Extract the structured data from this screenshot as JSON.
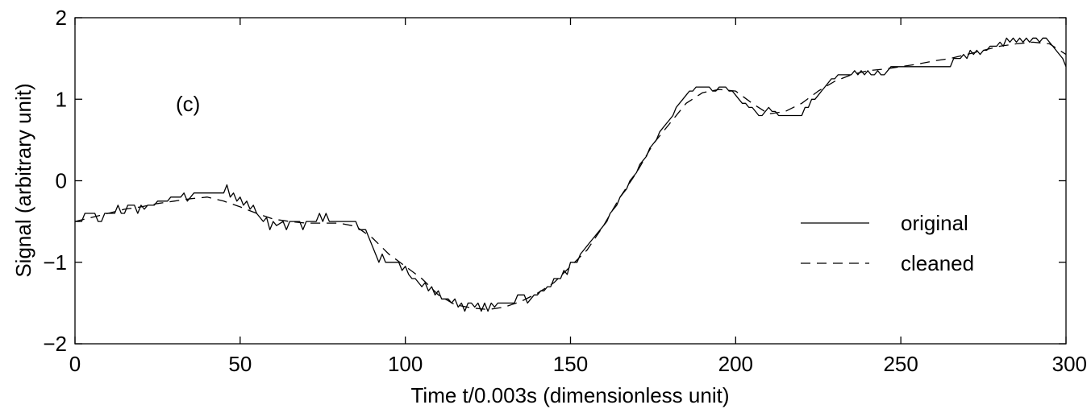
{
  "chart_data": {
    "type": "line",
    "panel_label": "(c)",
    "xlabel": "Time t/0.003s (dimensionless unit)",
    "ylabel": "Signal (arbitrary unit)",
    "xlim": [
      0,
      300
    ],
    "ylim": [
      -2,
      2
    ],
    "xticks": [
      0,
      50,
      100,
      150,
      200,
      250,
      300
    ],
    "yticks": [
      -2,
      -1,
      0,
      1,
      2
    ],
    "xtick_labels": [
      "0",
      "50",
      "100",
      "150",
      "200",
      "250",
      "300"
    ],
    "ytick_labels": [
      "−2",
      "−1",
      "0",
      "1",
      "2"
    ],
    "grid": false,
    "legend_position": "right",
    "series": [
      {
        "name": "original",
        "style": "solid",
        "color": "#000000",
        "points": [
          [
            0,
            -0.5
          ],
          [
            2,
            -0.5
          ],
          [
            3,
            -0.4
          ],
          [
            6,
            -0.4
          ],
          [
            7,
            -0.5
          ],
          [
            8,
            -0.5
          ],
          [
            9,
            -0.4
          ],
          [
            12,
            -0.4
          ],
          [
            13,
            -0.3
          ],
          [
            14,
            -0.4
          ],
          [
            15,
            -0.4
          ],
          [
            16,
            -0.3
          ],
          [
            18,
            -0.3
          ],
          [
            19,
            -0.4
          ],
          [
            20,
            -0.3
          ],
          [
            21,
            -0.35
          ],
          [
            22,
            -0.3
          ],
          [
            24,
            -0.3
          ],
          [
            25,
            -0.25
          ],
          [
            28,
            -0.25
          ],
          [
            29,
            -0.2
          ],
          [
            32,
            -0.2
          ],
          [
            33,
            -0.15
          ],
          [
            34,
            -0.25
          ],
          [
            35,
            -0.2
          ],
          [
            36,
            -0.15
          ],
          [
            40,
            -0.15
          ],
          [
            45,
            -0.15
          ],
          [
            46,
            -0.05
          ],
          [
            47,
            -0.2
          ],
          [
            48,
            -0.15
          ],
          [
            49,
            -0.25
          ],
          [
            50,
            -0.2
          ],
          [
            51,
            -0.3
          ],
          [
            52,
            -0.25
          ],
          [
            53,
            -0.35
          ],
          [
            54,
            -0.3
          ],
          [
            55,
            -0.4
          ],
          [
            57,
            -0.5
          ],
          [
            58,
            -0.45
          ],
          [
            59,
            -0.6
          ],
          [
            60,
            -0.5
          ],
          [
            61,
            -0.55
          ],
          [
            63,
            -0.5
          ],
          [
            64,
            -0.6
          ],
          [
            65,
            -0.5
          ],
          [
            68,
            -0.5
          ],
          [
            69,
            -0.6
          ],
          [
            70,
            -0.5
          ],
          [
            73,
            -0.5
          ],
          [
            74,
            -0.4
          ],
          [
            75,
            -0.5
          ],
          [
            76,
            -0.4
          ],
          [
            77,
            -0.5
          ],
          [
            85,
            -0.5
          ],
          [
            86,
            -0.6
          ],
          [
            88,
            -0.6
          ],
          [
            89,
            -0.7
          ],
          [
            90,
            -0.8
          ],
          [
            91,
            -0.9
          ],
          [
            92,
            -1.0
          ],
          [
            93,
            -0.9
          ],
          [
            94,
            -1.0
          ],
          [
            98,
            -1.0
          ],
          [
            99,
            -1.1
          ],
          [
            100,
            -1.05
          ],
          [
            101,
            -1.15
          ],
          [
            102,
            -1.2
          ],
          [
            103,
            -1.2
          ],
          [
            104,
            -1.25
          ],
          [
            105,
            -1.3
          ],
          [
            106,
            -1.25
          ],
          [
            107,
            -1.35
          ],
          [
            108,
            -1.3
          ],
          [
            109,
            -1.4
          ],
          [
            110,
            -1.35
          ],
          [
            111,
            -1.45
          ],
          [
            113,
            -1.45
          ],
          [
            114,
            -1.5
          ],
          [
            115,
            -1.45
          ],
          [
            116,
            -1.55
          ],
          [
            117,
            -1.5
          ],
          [
            118,
            -1.6
          ],
          [
            119,
            -1.5
          ],
          [
            120,
            -1.5
          ],
          [
            121,
            -1.55
          ],
          [
            122,
            -1.5
          ],
          [
            123,
            -1.6
          ],
          [
            124,
            -1.5
          ],
          [
            125,
            -1.6
          ],
          [
            126,
            -1.5
          ],
          [
            127,
            -1.55
          ],
          [
            128,
            -1.5
          ],
          [
            133,
            -1.5
          ],
          [
            134,
            -1.4
          ],
          [
            136,
            -1.4
          ],
          [
            137,
            -1.5
          ],
          [
            138,
            -1.45
          ],
          [
            139,
            -1.4
          ],
          [
            140,
            -1.4
          ],
          [
            141,
            -1.35
          ],
          [
            142,
            -1.35
          ],
          [
            143,
            -1.3
          ],
          [
            144,
            -1.3
          ],
          [
            145,
            -1.2
          ],
          [
            147,
            -1.2
          ],
          [
            148,
            -1.1
          ],
          [
            149,
            -1.15
          ],
          [
            150,
            -1.0
          ],
          [
            152,
            -1.0
          ],
          [
            153,
            -0.9
          ],
          [
            154,
            -0.85
          ],
          [
            155,
            -0.8
          ],
          [
            156,
            -0.75
          ],
          [
            157,
            -0.7
          ],
          [
            158,
            -0.65
          ],
          [
            159,
            -0.6
          ],
          [
            160,
            -0.55
          ],
          [
            161,
            -0.5
          ],
          [
            162,
            -0.4
          ],
          [
            163,
            -0.35
          ],
          [
            164,
            -0.3
          ],
          [
            165,
            -0.2
          ],
          [
            166,
            -0.15
          ],
          [
            167,
            -0.1
          ],
          [
            168,
            0.0
          ],
          [
            169,
            0.05
          ],
          [
            170,
            0.1
          ],
          [
            171,
            0.2
          ],
          [
            172,
            0.25
          ],
          [
            173,
            0.3
          ],
          [
            174,
            0.4
          ],
          [
            175,
            0.45
          ],
          [
            176,
            0.5
          ],
          [
            177,
            0.6
          ],
          [
            178,
            0.65
          ],
          [
            179,
            0.7
          ],
          [
            180,
            0.75
          ],
          [
            181,
            0.8
          ],
          [
            182,
            0.9
          ],
          [
            183,
            0.95
          ],
          [
            184,
            1.0
          ],
          [
            185,
            1.05
          ],
          [
            186,
            1.1
          ],
          [
            187,
            1.1
          ],
          [
            188,
            1.15
          ],
          [
            192,
            1.15
          ],
          [
            193,
            1.1
          ],
          [
            194,
            1.1
          ],
          [
            195,
            1.15
          ],
          [
            197,
            1.15
          ],
          [
            198,
            1.1
          ],
          [
            199,
            1.1
          ],
          [
            200,
            1.05
          ],
          [
            201,
            1.0
          ],
          [
            202,
            0.95
          ],
          [
            203,
            0.95
          ],
          [
            204,
            0.9
          ],
          [
            205,
            0.9
          ],
          [
            206,
            0.85
          ],
          [
            207,
            0.8
          ],
          [
            208,
            0.8
          ],
          [
            209,
            0.85
          ],
          [
            210,
            0.9
          ],
          [
            211,
            0.85
          ],
          [
            212,
            0.85
          ],
          [
            213,
            0.8
          ],
          [
            220,
            0.8
          ],
          [
            221,
            0.9
          ],
          [
            222,
            0.9
          ],
          [
            223,
            1.0
          ],
          [
            224,
            1.0
          ],
          [
            225,
            1.05
          ],
          [
            226,
            1.1
          ],
          [
            227,
            1.15
          ],
          [
            228,
            1.2
          ],
          [
            229,
            1.25
          ],
          [
            230,
            1.25
          ],
          [
            231,
            1.3
          ],
          [
            235,
            1.3
          ],
          [
            236,
            1.35
          ],
          [
            237,
            1.3
          ],
          [
            238,
            1.35
          ],
          [
            239,
            1.3
          ],
          [
            240,
            1.35
          ],
          [
            241,
            1.3
          ],
          [
            242,
            1.3
          ],
          [
            243,
            1.35
          ],
          [
            244,
            1.3
          ],
          [
            245,
            1.3
          ],
          [
            246,
            1.35
          ],
          [
            247,
            1.4
          ],
          [
            265,
            1.4
          ],
          [
            266,
            1.5
          ],
          [
            268,
            1.5
          ],
          [
            269,
            1.55
          ],
          [
            270,
            1.5
          ],
          [
            271,
            1.6
          ],
          [
            272,
            1.55
          ],
          [
            273,
            1.6
          ],
          [
            274,
            1.55
          ],
          [
            275,
            1.6
          ],
          [
            276,
            1.6
          ],
          [
            277,
            1.65
          ],
          [
            279,
            1.65
          ],
          [
            280,
            1.7
          ],
          [
            281,
            1.65
          ],
          [
            282,
            1.75
          ],
          [
            283,
            1.7
          ],
          [
            284,
            1.75
          ],
          [
            285,
            1.7
          ],
          [
            286,
            1.75
          ],
          [
            287,
            1.7
          ],
          [
            288,
            1.75
          ],
          [
            289,
            1.7
          ],
          [
            290,
            1.75
          ],
          [
            291,
            1.75
          ],
          [
            292,
            1.7
          ],
          [
            293,
            1.75
          ],
          [
            294,
            1.75
          ],
          [
            295,
            1.7
          ],
          [
            296,
            1.65
          ],
          [
            297,
            1.6
          ],
          [
            298,
            1.55
          ],
          [
            299,
            1.5
          ],
          [
            300,
            1.4
          ]
        ]
      },
      {
        "name": "cleaned",
        "style": "dashed",
        "color": "#000000",
        "points": [
          [
            0,
            -0.5
          ],
          [
            5,
            -0.45
          ],
          [
            10,
            -0.4
          ],
          [
            15,
            -0.35
          ],
          [
            20,
            -0.32
          ],
          [
            25,
            -0.28
          ],
          [
            30,
            -0.25
          ],
          [
            35,
            -0.22
          ],
          [
            40,
            -0.2
          ],
          [
            45,
            -0.25
          ],
          [
            50,
            -0.32
          ],
          [
            55,
            -0.4
          ],
          [
            60,
            -0.47
          ],
          [
            65,
            -0.5
          ],
          [
            70,
            -0.52
          ],
          [
            75,
            -0.52
          ],
          [
            80,
            -0.52
          ],
          [
            85,
            -0.56
          ],
          [
            90,
            -0.7
          ],
          [
            95,
            -0.9
          ],
          [
            100,
            -1.05
          ],
          [
            105,
            -1.2
          ],
          [
            110,
            -1.4
          ],
          [
            115,
            -1.52
          ],
          [
            120,
            -1.56
          ],
          [
            125,
            -1.58
          ],
          [
            130,
            -1.55
          ],
          [
            135,
            -1.48
          ],
          [
            140,
            -1.38
          ],
          [
            145,
            -1.25
          ],
          [
            150,
            -1.05
          ],
          [
            155,
            -0.85
          ],
          [
            160,
            -0.55
          ],
          [
            165,
            -0.2
          ],
          [
            170,
            0.1
          ],
          [
            175,
            0.45
          ],
          [
            180,
            0.7
          ],
          [
            185,
            0.95
          ],
          [
            190,
            1.08
          ],
          [
            195,
            1.12
          ],
          [
            200,
            1.1
          ],
          [
            205,
            0.95
          ],
          [
            210,
            0.82
          ],
          [
            215,
            0.85
          ],
          [
            220,
            0.95
          ],
          [
            225,
            1.1
          ],
          [
            230,
            1.22
          ],
          [
            235,
            1.3
          ],
          [
            240,
            1.35
          ],
          [
            245,
            1.37
          ],
          [
            250,
            1.4
          ],
          [
            255,
            1.43
          ],
          [
            260,
            1.47
          ],
          [
            265,
            1.5
          ],
          [
            270,
            1.55
          ],
          [
            275,
            1.6
          ],
          [
            280,
            1.65
          ],
          [
            285,
            1.68
          ],
          [
            290,
            1.7
          ],
          [
            295,
            1.68
          ],
          [
            300,
            1.55
          ]
        ]
      }
    ]
  }
}
